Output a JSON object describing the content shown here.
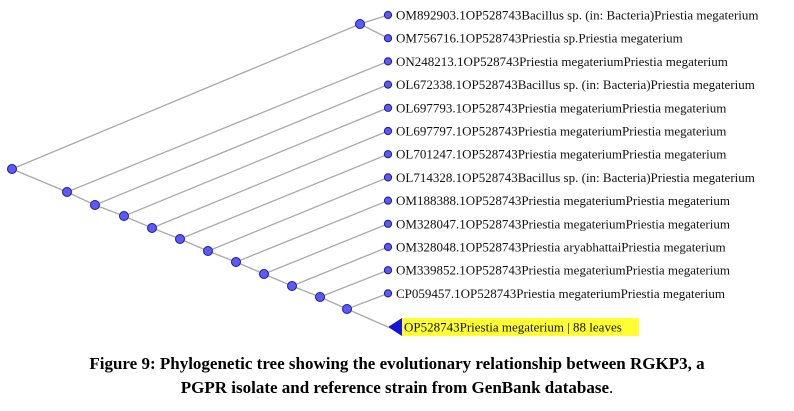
{
  "colors": {
    "branch": "#a9a9a9",
    "node_fill": "#5a5aff",
    "node_stroke": "#1a1a8c",
    "highlight_bg": "#ffff33",
    "collapsed_marker": "#1515d6"
  },
  "tree": {
    "leaves": [
      "OM892903.1OP528743Bacillus sp. (in: Bacteria)Priestia megaterium",
      "OM756716.1OP528743Priestia sp.Priestia megaterium",
      "ON248213.1OP528743Priestia megateriumPriestia megaterium",
      "OL672338.1OP528743Bacillus sp. (in: Bacteria)Priestia megaterium",
      "OL697793.1OP528743Priestia megateriumPriestia megaterium",
      "OL697797.1OP528743Priestia megateriumPriestia megaterium",
      "OL701247.1OP528743Priestia megateriumPriestia megaterium",
      "OL714328.1OP528743Bacillus sp. (in: Bacteria)Priestia megaterium",
      "OM188388.1OP528743Priestia megateriumPriestia megaterium",
      "OM328047.1OP528743Priestia megateriumPriestia megaterium",
      "OM328048.1OP528743Priestia aryabhattaiPriestia megaterium",
      "OM339852.1OP528743Priestia megateriumPriestia megaterium",
      "CP059457.1OP528743Priestia megateriumPriestia megaterium"
    ],
    "collapsed_node_label": "OP528743Priestia megaterium | 88 leaves"
  },
  "caption": {
    "line1": "Figure 9: Phylogenetic tree showing the evolutionary relationship between RGKP3, a",
    "line2": "PGPR isolate and reference strain from GenBank database",
    "line2_end": "."
  }
}
